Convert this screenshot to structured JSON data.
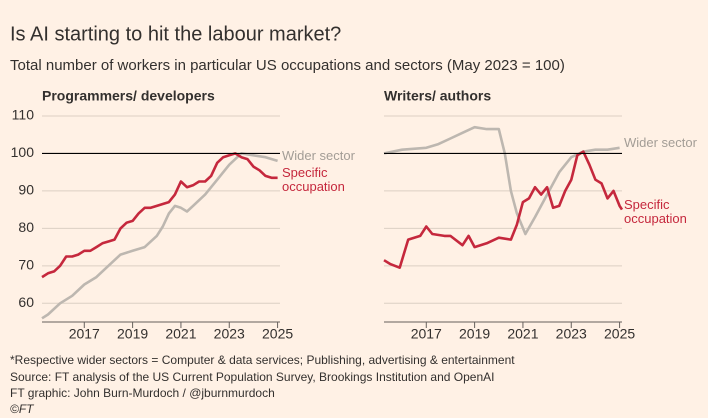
{
  "header": {
    "title": "Is AI starting to hit the labour market?",
    "subtitle": "Total number of workers in particular US occupations and sectors (May 2023 = 100)"
  },
  "chart_data": [
    {
      "type": "line",
      "title": "Programmers/ developers",
      "reference": 100,
      "xlim": [
        2015.25,
        2025.1
      ],
      "xticks": [
        2017,
        2019,
        2021,
        2023,
        2025
      ],
      "ylim": [
        55,
        112
      ],
      "yticks": [
        60,
        70,
        80,
        90,
        100,
        110
      ],
      "ytick_labels": true,
      "grid": true,
      "series": [
        {
          "name": "Wider sector",
          "color": "#bdb7b0",
          "x": [
            2015.25,
            2015.5,
            2016,
            2016.5,
            2017,
            2017.5,
            2018,
            2018.5,
            2019,
            2019.5,
            2020,
            2020.25,
            2020.5,
            2020.75,
            2021,
            2021.25,
            2021.5,
            2022,
            2022.5,
            2023,
            2023.5,
            2024,
            2024.5,
            2025
          ],
          "values": [
            56,
            57,
            60,
            62,
            65,
            67,
            70,
            73,
            74,
            75,
            78,
            80.5,
            84,
            86,
            85.5,
            84.5,
            86,
            89,
            93,
            97,
            100,
            99.5,
            99,
            98
          ]
        },
        {
          "name": "Specific occupation",
          "color": "#c5283d",
          "x": [
            2015.25,
            2015.5,
            2015.75,
            2016,
            2016.25,
            2016.5,
            2016.75,
            2017,
            2017.25,
            2017.5,
            2017.75,
            2018,
            2018.25,
            2018.5,
            2018.75,
            2019,
            2019.25,
            2019.5,
            2019.75,
            2020,
            2020.25,
            2020.5,
            2020.75,
            2021,
            2021.25,
            2021.5,
            2021.75,
            2022,
            2022.25,
            2022.5,
            2022.75,
            2023,
            2023.25,
            2023.5,
            2023.75,
            2024,
            2024.25,
            2024.5,
            2024.75,
            2025
          ],
          "values": [
            67,
            68,
            68.5,
            70,
            72.5,
            72.5,
            73,
            74,
            74,
            75,
            76,
            76.5,
            77,
            80,
            81.5,
            82,
            84,
            85.5,
            85.5,
            86,
            86.5,
            87,
            89,
            92.5,
            91,
            91.5,
            92.5,
            92.5,
            94,
            97.5,
            99,
            99.5,
            100,
            99,
            98.5,
            96.5,
            95.5,
            94,
            93.5,
            93.5
          ]
        }
      ]
    },
    {
      "type": "line",
      "title": "Writers/ authors",
      "reference": 100,
      "xlim": [
        2015.25,
        2025.1
      ],
      "xticks": [
        2017,
        2019,
        2021,
        2023,
        2025
      ],
      "ylim": [
        55,
        112
      ],
      "yticks": [
        60,
        70,
        80,
        90,
        100,
        110
      ],
      "ytick_labels": false,
      "grid": true,
      "series": [
        {
          "name": "Wider sector",
          "color": "#bdb7b0",
          "x": [
            2015.25,
            2016,
            2017,
            2017.5,
            2018,
            2018.5,
            2019,
            2019.5,
            2020,
            2020.25,
            2020.5,
            2020.75,
            2021.1,
            2021.5,
            2022,
            2022.5,
            2023,
            2023.5,
            2024,
            2024.5,
            2025
          ],
          "values": [
            100,
            101,
            101.5,
            102.5,
            104,
            105.5,
            107,
            106.5,
            106.5,
            100,
            90,
            84,
            78.5,
            83,
            89,
            95,
            99,
            100.5,
            101,
            101,
            101.5
          ]
        },
        {
          "name": "Specific occupation",
          "color": "#c5283d",
          "x": [
            2015.25,
            2015.5,
            2015.9,
            2016.25,
            2016.75,
            2017,
            2017.25,
            2017.75,
            2018,
            2018.5,
            2018.75,
            2019,
            2019.5,
            2020,
            2020.5,
            2020.75,
            2021,
            2021.25,
            2021.5,
            2021.75,
            2022,
            2022.25,
            2022.5,
            2022.75,
            2023,
            2023.25,
            2023.5,
            2023.75,
            2024,
            2024.25,
            2024.5,
            2024.75,
            2025,
            2025.1
          ],
          "values": [
            71.5,
            70.5,
            69.5,
            77,
            78,
            80.5,
            78.5,
            78,
            78,
            75.5,
            78,
            75,
            76,
            77.5,
            77,
            81,
            87,
            88,
            91,
            89,
            91,
            85.5,
            86,
            90,
            93,
            99.5,
            100.5,
            97,
            93,
            92,
            88,
            90,
            86,
            85
          ]
        }
      ]
    }
  ],
  "footer": [
    "*Respective wider sectors = Computer & data services; Publishing, advertising & entertainment",
    "Source: FT analysis of the US Current Population Survey, Brookings Institution and OpenAI",
    "FT graphic: John Burn-Murdoch / @jburnmurdoch",
    "©FT"
  ]
}
